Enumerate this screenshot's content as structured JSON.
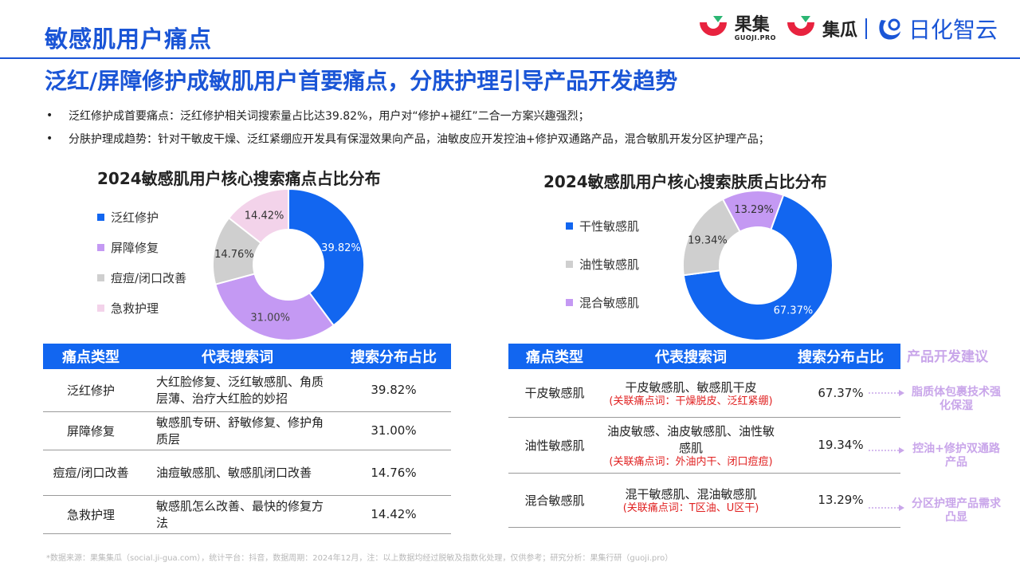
{
  "header": {
    "title": "敏感肌用户痛点",
    "logo_guoji_cn": "果集",
    "logo_guoji_en": "GUOJI.PRO",
    "logo_jigua": "集瓜",
    "logo_rihua": "日化智云"
  },
  "subtitle": "泛红/屏障修护成敏肌用户首要痛点，分肤护理引导产品开发趋势",
  "bullets": [
    "泛红修护成首要痛点：泛红修护相关词搜索量占比达39.82%，用户对“修护+褪红”二合一方案兴趣强烈；",
    "分肤护理成趋势：针对干敏皮干燥、泛红紧绷应开发具有保湿效果向产品，油敏皮应开发控油+修护双通路产品，混合敏肌开发分区护理产品；"
  ],
  "bullet_marker": "•",
  "chart_data": [
    {
      "type": "pie",
      "title": "2024敏感肌用户核心搜索痛点占比分布",
      "categories": [
        "泛红修护",
        "屏障修复",
        "痘痘/闭口改善",
        "急救护理"
      ],
      "values": [
        39.82,
        31.0,
        14.76,
        14.42
      ],
      "labels": [
        "39.82%",
        "31.00%",
        "14.76%",
        "14.42%"
      ],
      "colors": [
        "#1266f0",
        "#c499f3",
        "#cfcfcf",
        "#f3d3ea"
      ],
      "label_colors": [
        "#ffffff",
        "#444444",
        "#333333",
        "#333333"
      ],
      "legend_position": "left"
    },
    {
      "type": "pie",
      "title": "2024敏感肌用户核心搜索肤质占比分布",
      "categories": [
        "干性敏感肌",
        "油性敏感肌",
        "混合敏感肌"
      ],
      "values": [
        67.37,
        19.34,
        13.29
      ],
      "labels": [
        "67.37%",
        "19.34%",
        "13.29%"
      ],
      "colors": [
        "#1266f0",
        "#cfcfcf",
        "#c499f3"
      ],
      "label_colors": [
        "#ffffff",
        "#333333",
        "#333333"
      ],
      "legend_position": "left"
    }
  ],
  "table_left": {
    "headers": [
      "痛点类型",
      "代表搜索词",
      "搜索分布占比"
    ],
    "rows": [
      {
        "type": "泛红修护",
        "keywords": "大红脸修复、泛红敏感肌、角质层薄、治疗大红脸的妙招",
        "share": "39.82%"
      },
      {
        "type": "屏障修复",
        "keywords": "敏感肌专研、舒敏修复、修护角质层",
        "share": "31.00%"
      },
      {
        "type": "痘痘/闭口改善",
        "keywords": "油痘敏感肌、敏感肌闭口改善",
        "share": "14.76%"
      },
      {
        "type": "急救护理",
        "keywords": "敏感肌怎么改善、最快的修复方法",
        "share": "14.42%"
      }
    ]
  },
  "table_right": {
    "headers": [
      "痛点类型",
      "代表搜索词",
      "搜索分布占比"
    ],
    "rows": [
      {
        "type": "干皮敏感肌",
        "keywords": "干皮敏感肌、敏感肌干皮",
        "related": "(关联痛点词：干燥脱皮、泛红紧绷)",
        "share": "67.37%"
      },
      {
        "type": "油性敏感肌",
        "keywords": "油皮敏感、油皮敏感肌、油性敏感肌",
        "related": "(关联痛点词：外油内干、闭口痘痘)",
        "share": "19.34%"
      },
      {
        "type": "混合敏感肌",
        "keywords": "混干敏感肌、混油敏感肌",
        "related": "(关联痛点词：T区油、U区干)",
        "share": "13.29%"
      }
    ]
  },
  "suggestions": {
    "header": "产品开发建议",
    "items": [
      "脂质体包裹技术强化保湿",
      "控油+修护双通路产品",
      "分区护理产品需求凸显"
    ]
  },
  "colors": {
    "brand_blue": "#1a55d6",
    "header_blue": "#1266f0",
    "suggestion_purple": "#c9a6ea",
    "related_red": "#e02020"
  },
  "footnote": "*数据来源：果集集瓜（social.ji-gua.com），统计平台：抖音，数据周期：2024年12月，注：以上数据均经过脱敏及指数化处理，仅供参考；研究分析：果集行研（guoji.pro）"
}
